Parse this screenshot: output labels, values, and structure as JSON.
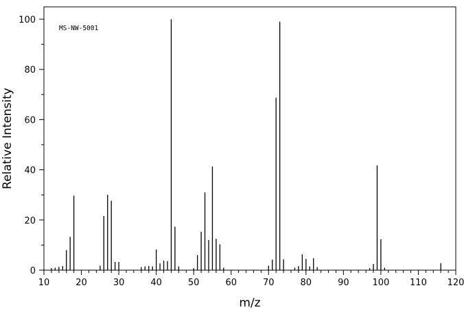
{
  "chart_data": {
    "type": "bar",
    "title": "",
    "annotation": "MS-NW-5001",
    "xlabel": "m/z",
    "ylabel": "Relative Intensity",
    "xlim": [
      10,
      120
    ],
    "ylim": [
      0,
      105
    ],
    "x_ticks": [
      10,
      20,
      30,
      40,
      50,
      60,
      70,
      80,
      90,
      100,
      110,
      120
    ],
    "y_ticks": [
      0,
      20,
      40,
      60,
      80,
      100
    ],
    "grid": false,
    "legend": "none",
    "bar_color": "#000000",
    "series": [
      {
        "x": [
          12,
          13,
          14,
          15,
          16,
          17,
          18,
          25,
          26,
          27,
          28,
          29,
          30,
          36,
          37,
          38,
          39,
          40,
          41,
          42,
          43,
          44,
          45,
          46,
          50,
          51,
          52,
          53,
          54,
          55,
          56,
          57,
          58,
          70,
          71,
          72,
          73,
          74,
          77,
          78,
          79,
          80,
          81,
          82,
          83,
          97,
          98,
          99,
          100,
          101,
          116
        ],
        "values": [
          0.8,
          1.0,
          1.3,
          1.6,
          8.0,
          13.3,
          29.7,
          1.8,
          21.6,
          30.0,
          27.7,
          3.3,
          3.3,
          1.2,
          1.5,
          1.7,
          1.5,
          8.2,
          2.7,
          3.8,
          3.6,
          100,
          17.3,
          1.5,
          0.8,
          6.0,
          15.3,
          31.0,
          12.0,
          41.3,
          12.5,
          10.3,
          1.0,
          1.8,
          4.2,
          68.7,
          99.0,
          4.3,
          1.0,
          1.6,
          6.3,
          4.5,
          1.5,
          4.8,
          1.2,
          0.8,
          2.5,
          41.8,
          12.3,
          1.0,
          2.8
        ]
      }
    ]
  }
}
